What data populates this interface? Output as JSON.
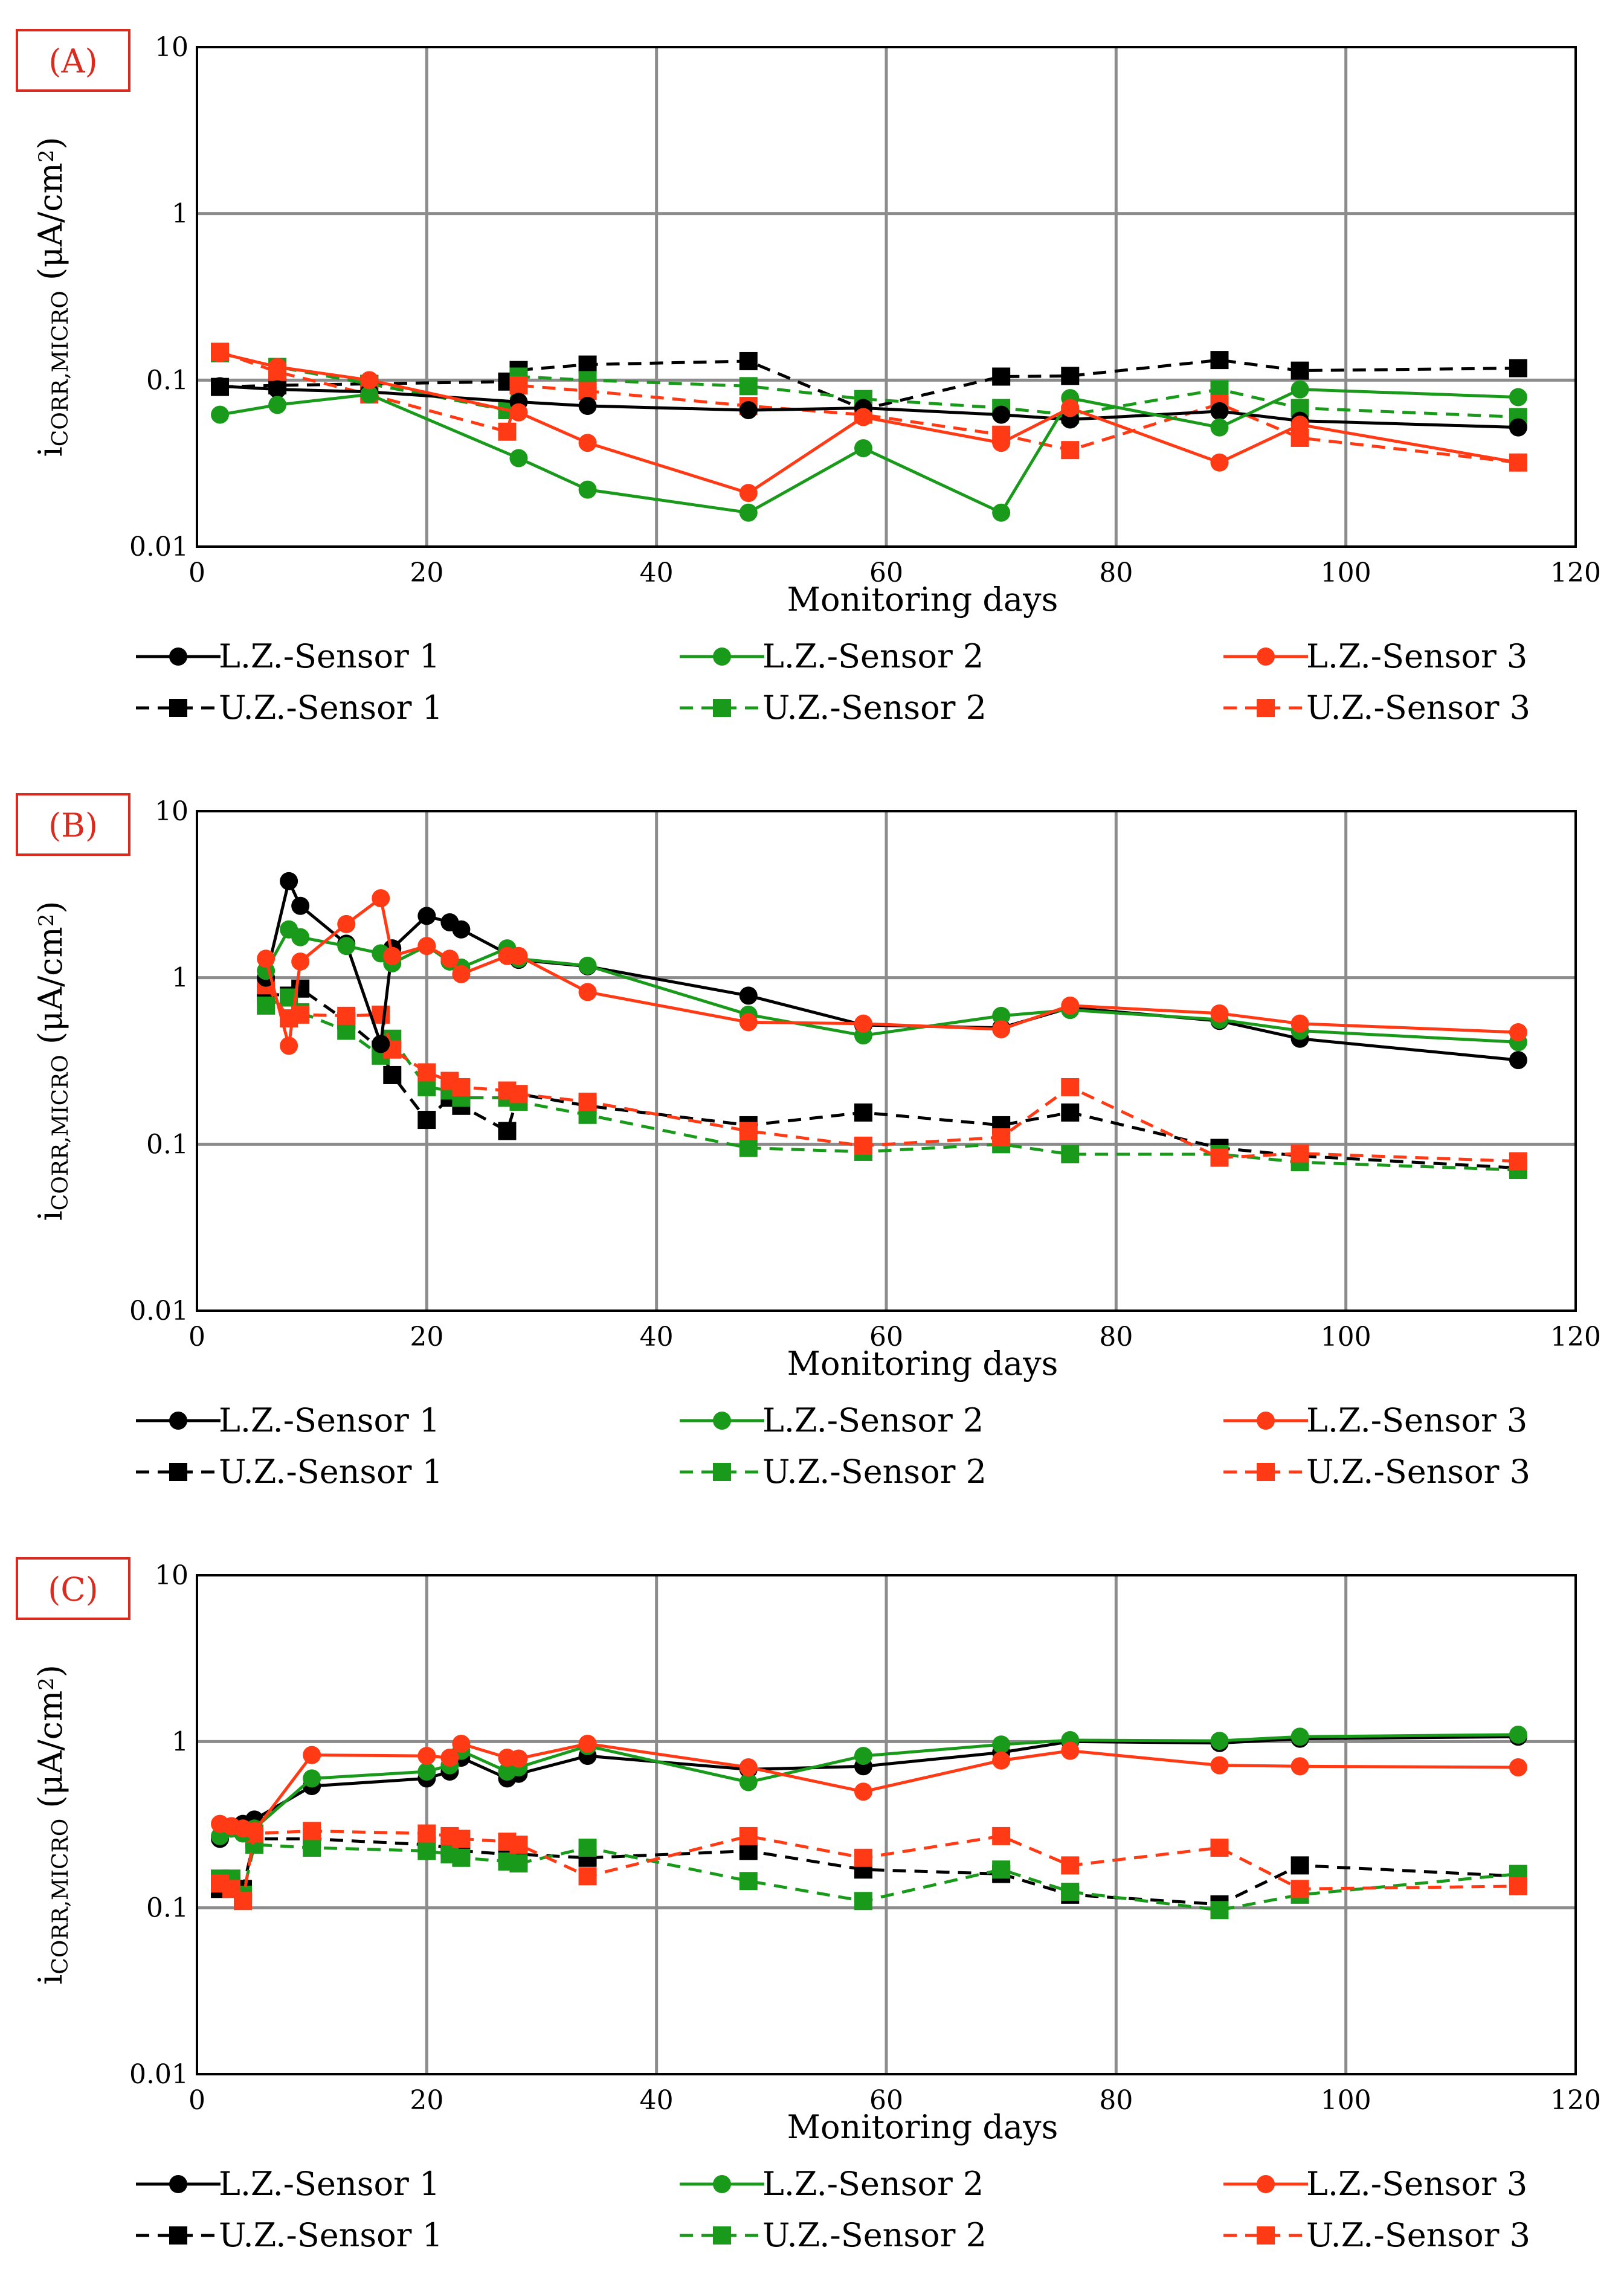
{
  "xlabel": "Monitoring days",
  "ylabel_main": "i",
  "ylabel_sub": "CORR,MICRO",
  "ylabel_units_pre": " (μA/cm",
  "ylabel_units_sup": "2",
  "ylabel_units_post": ")",
  "x_ticks": [
    "0",
    "20",
    "40",
    "60",
    "80",
    "100",
    "120"
  ],
  "y_ticks": [
    "0.01",
    "0.1",
    "1",
    "10"
  ],
  "colors": {
    "sensor1": "#000000",
    "sensor2": "#1a9a1a",
    "sensor3": "#ff3a14",
    "grid": "#8c8c8c",
    "tag_border": "#d92b1e"
  },
  "chart_data": [
    {
      "type": "line",
      "panel": "(A)",
      "xlim": [
        0,
        120
      ],
      "ylim": [
        0.01,
        10
      ],
      "yscale": "log",
      "xlabel": "Monitoring days",
      "ylabel": "iCORR,MICRO (μA/cm2)",
      "legend": "bottom",
      "series": [
        {
          "name": "L.Z.-Sensor 1",
          "color": "sensor1",
          "line": "solid",
          "marker": "circle",
          "x": [
            2,
            7,
            15,
            28,
            34,
            48,
            58,
            70,
            76,
            89,
            96,
            115
          ],
          "y": [
            0.092,
            0.088,
            0.085,
            0.074,
            0.07,
            0.066,
            0.068,
            0.062,
            0.058,
            0.065,
            0.057,
            0.052
          ]
        },
        {
          "name": "L.Z.-Sensor 2",
          "color": "sensor2",
          "line": "solid",
          "marker": "circle",
          "x": [
            2,
            7,
            15,
            28,
            34,
            48,
            58,
            70,
            76,
            89,
            96,
            115
          ],
          "y": [
            0.062,
            0.071,
            0.082,
            0.034,
            0.022,
            0.016,
            0.039,
            0.016,
            0.078,
            0.052,
            0.088,
            0.079
          ]
        },
        {
          "name": "L.Z.-Sensor 3",
          "color": "sensor3",
          "line": "solid",
          "marker": "circle",
          "x": [
            2,
            7,
            15,
            28,
            34,
            48,
            58,
            70,
            76,
            89,
            96,
            115
          ],
          "y": [
            0.145,
            0.12,
            0.1,
            0.064,
            0.042,
            0.021,
            0.06,
            0.042,
            0.068,
            0.032,
            0.054,
            0.032
          ]
        },
        {
          "name": "U.Z.-Sensor 1",
          "color": "sensor1",
          "line": "dashed",
          "marker": "square",
          "x": [
            2,
            7,
            15,
            27,
            28,
            34,
            48,
            58,
            70,
            76,
            89,
            96,
            115
          ],
          "y": [
            0.091,
            0.093,
            0.095,
            0.098,
            0.115,
            0.124,
            0.13,
            0.067,
            0.105,
            0.106,
            0.132,
            0.114,
            0.118
          ]
        },
        {
          "name": "U.Z.-Sensor 2",
          "color": "sensor2",
          "line": "dashed",
          "marker": "square",
          "x": [
            2,
            7,
            15,
            27,
            28,
            34,
            48,
            58,
            70,
            76,
            89,
            96,
            115
          ],
          "y": [
            0.145,
            0.12,
            0.095,
            0.066,
            0.105,
            0.1,
            0.092,
            0.077,
            0.068,
            0.062,
            0.088,
            0.068,
            0.06
          ]
        },
        {
          "name": "U.Z.-Sensor 3",
          "color": "sensor3",
          "line": "dashed",
          "marker": "square",
          "x": [
            2,
            7,
            15,
            27,
            28,
            34,
            48,
            58,
            70,
            76,
            89,
            96,
            115
          ],
          "y": [
            0.148,
            0.112,
            0.082,
            0.049,
            0.093,
            0.086,
            0.07,
            0.062,
            0.047,
            0.038,
            0.072,
            0.045,
            0.032
          ]
        }
      ]
    },
    {
      "type": "line",
      "panel": "(B)",
      "xlim": [
        0,
        120
      ],
      "ylim": [
        0.01,
        10
      ],
      "yscale": "log",
      "xlabel": "Monitoring days",
      "ylabel": "iCORR,MICRO (μA/cm2)",
      "legend": "bottom",
      "series": [
        {
          "name": "L.Z.-Sensor 1",
          "color": "sensor1",
          "line": "solid",
          "marker": "circle",
          "x": [
            6,
            8,
            9,
            13,
            16,
            17,
            20,
            22,
            23,
            28,
            34,
            48,
            58,
            70,
            76,
            89,
            96,
            115
          ],
          "y": [
            1.0,
            3.8,
            2.7,
            1.6,
            0.4,
            1.5,
            2.35,
            2.15,
            1.95,
            1.28,
            1.17,
            0.78,
            0.52,
            0.5,
            0.66,
            0.55,
            0.43,
            0.32
          ]
        },
        {
          "name": "L.Z.-Sensor 2",
          "color": "sensor2",
          "line": "solid",
          "marker": "circle",
          "x": [
            6,
            8,
            9,
            13,
            16,
            17,
            20,
            22,
            23,
            27,
            28,
            34,
            48,
            58,
            70,
            76,
            89,
            96,
            115
          ],
          "y": [
            1.1,
            1.95,
            1.75,
            1.55,
            1.4,
            1.22,
            1.55,
            1.25,
            1.15,
            1.5,
            1.3,
            1.18,
            0.6,
            0.45,
            0.59,
            0.64,
            0.56,
            0.48,
            0.41
          ]
        },
        {
          "name": "L.Z.-Sensor 3",
          "color": "sensor3",
          "line": "solid",
          "marker": "circle",
          "x": [
            6,
            8,
            9,
            13,
            16,
            17,
            20,
            22,
            23,
            27,
            28,
            34,
            48,
            58,
            70,
            76,
            89,
            96,
            115
          ],
          "y": [
            1.3,
            0.39,
            1.25,
            2.1,
            3.0,
            1.35,
            1.55,
            1.3,
            1.05,
            1.35,
            1.35,
            0.82,
            0.54,
            0.53,
            0.49,
            0.68,
            0.61,
            0.53,
            0.47
          ]
        },
        {
          "name": "U.Z.-Sensor 1",
          "color": "sensor1",
          "line": "dashed",
          "marker": "square",
          "x": [
            6,
            8,
            9,
            13,
            16,
            17,
            20,
            22,
            23,
            27,
            28,
            34,
            48,
            58,
            70,
            76,
            89,
            96,
            115
          ],
          "y": [
            0.8,
            0.78,
            0.86,
            0.55,
            0.37,
            0.26,
            0.14,
            0.19,
            0.17,
            0.12,
            0.2,
            0.17,
            0.13,
            0.155,
            0.13,
            0.155,
            0.095,
            0.085,
            0.072
          ]
        },
        {
          "name": "U.Z.-Sensor 2",
          "color": "sensor2",
          "line": "dashed",
          "marker": "square",
          "x": [
            6,
            8,
            9,
            13,
            16,
            17,
            20,
            22,
            23,
            27,
            28,
            34,
            48,
            58,
            70,
            76,
            89,
            96,
            115
          ],
          "y": [
            0.68,
            0.76,
            0.62,
            0.48,
            0.34,
            0.43,
            0.22,
            0.21,
            0.19,
            0.19,
            0.18,
            0.15,
            0.095,
            0.09,
            0.1,
            0.087,
            0.087,
            0.078,
            0.07
          ]
        },
        {
          "name": "U.Z.-Sensor 3",
          "color": "sensor3",
          "line": "dashed",
          "marker": "square",
          "x": [
            6,
            8,
            9,
            13,
            16,
            17,
            20,
            22,
            23,
            27,
            28,
            34,
            48,
            58,
            70,
            76,
            89,
            96,
            115
          ],
          "y": [
            0.9,
            0.57,
            0.6,
            0.59,
            0.6,
            0.37,
            0.27,
            0.24,
            0.22,
            0.21,
            0.2,
            0.18,
            0.12,
            0.098,
            0.11,
            0.22,
            0.083,
            0.088,
            0.079
          ]
        }
      ]
    },
    {
      "type": "line",
      "panel": "(C)",
      "xlim": [
        0,
        120
      ],
      "ylim": [
        0.01,
        10
      ],
      "yscale": "log",
      "xlabel": "Monitoring days",
      "ylabel": "iCORR,MICRO (μA/cm2)",
      "legend": "bottom",
      "series": [
        {
          "name": "L.Z.-Sensor 1",
          "color": "sensor1",
          "line": "solid",
          "marker": "circle",
          "x": [
            2,
            3,
            4,
            5,
            10,
            20,
            22,
            23,
            27,
            28,
            34,
            48,
            58,
            70,
            76,
            89,
            96,
            115
          ],
          "y": [
            0.26,
            0.3,
            0.32,
            0.34,
            0.54,
            0.6,
            0.66,
            0.8,
            0.6,
            0.64,
            0.82,
            0.68,
            0.71,
            0.86,
            1.0,
            0.98,
            1.04,
            1.07
          ]
        },
        {
          "name": "L.Z.-Sensor 2",
          "color": "sensor2",
          "line": "solid",
          "marker": "circle",
          "x": [
            2,
            3,
            4,
            5,
            10,
            20,
            22,
            23,
            27,
            28,
            34,
            48,
            58,
            70,
            76,
            89,
            96,
            115
          ],
          "y": [
            0.27,
            0.3,
            0.28,
            0.3,
            0.6,
            0.66,
            0.72,
            0.88,
            0.66,
            0.7,
            0.94,
            0.57,
            0.82,
            0.96,
            1.02,
            1.01,
            1.07,
            1.1
          ]
        },
        {
          "name": "L.Z.-Sensor 3",
          "color": "sensor3",
          "line": "solid",
          "marker": "circle",
          "x": [
            2,
            3,
            4,
            5,
            10,
            20,
            22,
            23,
            27,
            28,
            34,
            48,
            58,
            70,
            76,
            89,
            96,
            115
          ],
          "y": [
            0.32,
            0.31,
            0.3,
            0.29,
            0.83,
            0.82,
            0.8,
            0.97,
            0.8,
            0.79,
            0.97,
            0.7,
            0.5,
            0.77,
            0.88,
            0.72,
            0.71,
            0.7
          ]
        },
        {
          "name": "U.Z.-Sensor 1",
          "color": "sensor1",
          "line": "dashed",
          "marker": "square",
          "x": [
            2,
            3,
            4,
            5,
            10,
            20,
            22,
            23,
            27,
            28,
            34,
            48,
            58,
            70,
            76,
            89,
            96,
            115
          ],
          "y": [
            0.13,
            0.14,
            0.13,
            0.26,
            0.26,
            0.24,
            0.23,
            0.22,
            0.21,
            0.21,
            0.2,
            0.22,
            0.17,
            0.16,
            0.12,
            0.105,
            0.18,
            0.155
          ]
        },
        {
          "name": "U.Z.-Sensor 2",
          "color": "sensor2",
          "line": "dashed",
          "marker": "square",
          "x": [
            2,
            3,
            4,
            5,
            10,
            20,
            22,
            23,
            27,
            28,
            34,
            48,
            58,
            70,
            76,
            89,
            96,
            115
          ],
          "y": [
            0.15,
            0.15,
            0.12,
            0.24,
            0.23,
            0.22,
            0.21,
            0.2,
            0.19,
            0.185,
            0.23,
            0.145,
            0.11,
            0.17,
            0.125,
            0.097,
            0.12,
            0.16
          ]
        },
        {
          "name": "U.Z.-Sensor 3",
          "color": "sensor3",
          "line": "dashed",
          "marker": "square",
          "x": [
            2,
            3,
            4,
            5,
            10,
            20,
            22,
            23,
            27,
            28,
            34,
            48,
            58,
            70,
            76,
            89,
            96,
            115
          ],
          "y": [
            0.14,
            0.13,
            0.11,
            0.28,
            0.29,
            0.28,
            0.27,
            0.26,
            0.25,
            0.24,
            0.155,
            0.27,
            0.2,
            0.27,
            0.18,
            0.23,
            0.13,
            0.135
          ]
        }
      ]
    }
  ]
}
